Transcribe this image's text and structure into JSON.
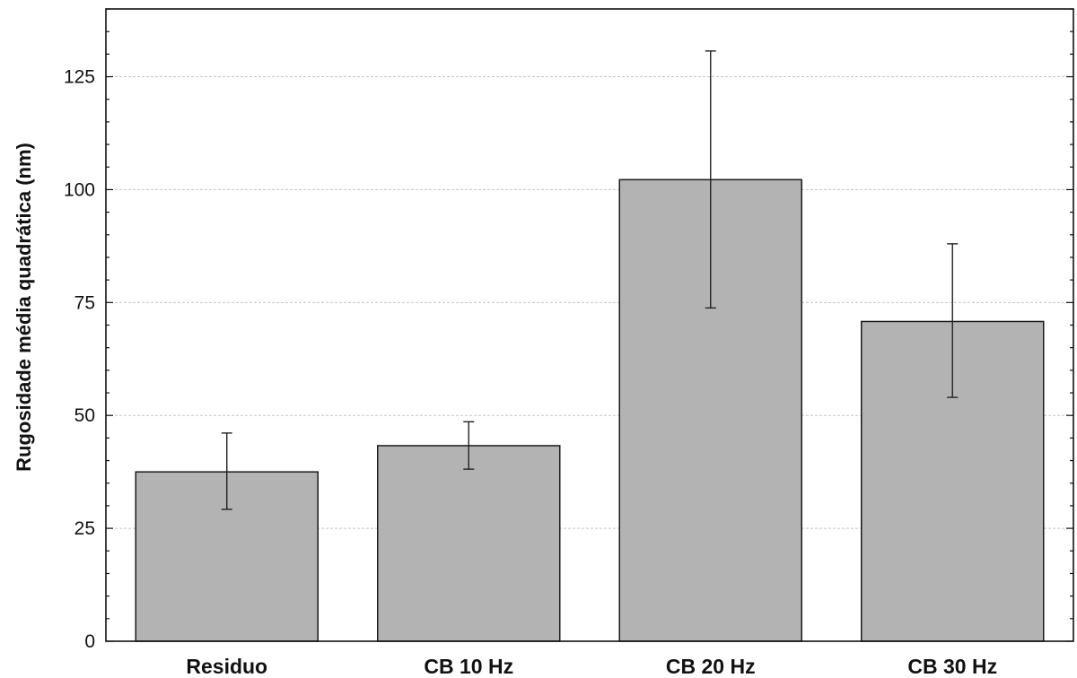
{
  "chart_data": {
    "type": "bar",
    "categories": [
      "Residuo",
      "CB 10 Hz",
      "CB 20 Hz",
      "CB 30 Hz"
    ],
    "values": [
      37.5,
      43.3,
      102.2,
      70.8
    ],
    "error_low": [
      29.2,
      38.1,
      73.8,
      54.0
    ],
    "error_high": [
      46.1,
      48.6,
      130.7,
      88.0
    ],
    "title": "",
    "xlabel": "",
    "ylabel": "Rugosidade média quadrática (nm)",
    "ylim": [
      0,
      140
    ],
    "yticks": [
      0,
      25,
      50,
      75,
      100,
      125
    ],
    "ytick_labels": [
      "0",
      "25",
      "50",
      "75",
      "100",
      "125"
    ],
    "grid": true,
    "legend": "none",
    "colors": {
      "bar_fill": "#b3b3b3",
      "bar_stroke": "#1a1a1a",
      "grid": "#c4c4c4",
      "axis": "#111111"
    }
  }
}
